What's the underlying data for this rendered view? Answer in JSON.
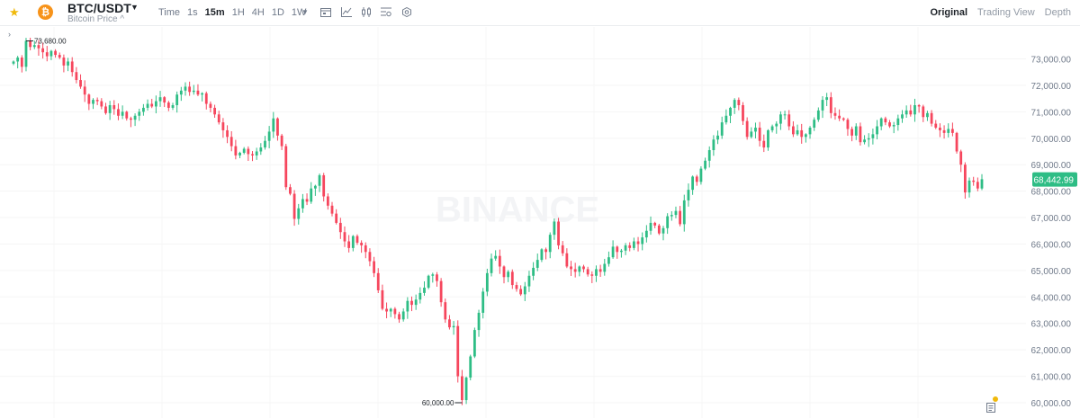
{
  "header": {
    "pair": "BTC/USDT",
    "subtitle": "Bitcoin Price",
    "subtitle_caret": "^",
    "coin_glyph": "₿",
    "intervals": [
      "Time",
      "1s",
      "15m",
      "1H",
      "4H",
      "1D",
      "1W"
    ],
    "active_interval": "15m",
    "view_tabs": [
      "Original",
      "Trading View",
      "Depth"
    ],
    "active_view": "Original",
    "tool_icons": [
      "calendar-icon",
      "indicator-icon",
      "candle-type-icon",
      "settings-list-icon",
      "gear-icon"
    ]
  },
  "colors": {
    "up": "#2ebd85",
    "down": "#f6465d",
    "accent": "#f0b90b",
    "coin": "#f7931a",
    "price_tag": "#2ebd85"
  },
  "watermark": "BINANCE",
  "chart_data": {
    "type": "candlestick",
    "ylim": [
      59850,
      73800
    ],
    "y_ticks": [
      "60,000.00",
      "61,000.00",
      "62,000.00",
      "63,000.00",
      "64,000.00",
      "65,000.00",
      "66,000.00",
      "67,000.00",
      "68,000.00",
      "69,000.00",
      "70,000.00",
      "71,000.00",
      "72,000.00",
      "73,000.00"
    ],
    "y_tick_values": [
      60000,
      61000,
      62000,
      63000,
      64000,
      65000,
      66000,
      67000,
      68000,
      69000,
      70000,
      71000,
      72000,
      73000
    ],
    "last_price": 68442.99,
    "last_price_label": "68,442.99",
    "high_label": "73,680.00",
    "low_label": "60,000.00",
    "closes": [
      72900,
      73050,
      72700,
      73680,
      73450,
      73520,
      73400,
      73250,
      73100,
      73300,
      73150,
      73050,
      72750,
      72900,
      72500,
      72200,
      71950,
      71650,
      71300,
      71450,
      71400,
      71200,
      70950,
      71250,
      71100,
      70850,
      71000,
      70750,
      70700,
      70850,
      71000,
      71150,
      71300,
      71200,
      71400,
      71550,
      71350,
      71150,
      71250,
      71650,
      71800,
      71950,
      71750,
      71800,
      71650,
      71700,
      71300,
      71150,
      70900,
      70600,
      70300,
      70050,
      69700,
      69350,
      69450,
      69600,
      69400,
      69350,
      69500,
      69650,
      69900,
      70250,
      70750,
      70100,
      69700,
      68150,
      67900,
      66950,
      67350,
      67700,
      67600,
      68100,
      68200,
      68600,
      67800,
      67450,
      67150,
      66800,
      66450,
      66100,
      65850,
      66300,
      66050,
      65950,
      65700,
      65350,
      64900,
      64250,
      63550,
      63450,
      63550,
      63350,
      63150,
      63450,
      63850,
      63700,
      63900,
      64150,
      64350,
      64800,
      64850,
      64600,
      63800,
      63150,
      62850,
      62900,
      61000,
      60100,
      60950,
      61750,
      62750,
      63400,
      64200,
      64900,
      65450,
      65550,
      65150,
      64750,
      64950,
      64450,
      64300,
      64100,
      64400,
      64800,
      65100,
      65400,
      65800,
      65700,
      66350,
      66850,
      65950,
      65650,
      65150,
      65050,
      64950,
      65150,
      65050,
      64850,
      64800,
      65050,
      64950,
      65250,
      65500,
      65900,
      65700,
      65750,
      65950,
      65850,
      66100,
      66000,
      66250,
      66500,
      66800,
      66700,
      66400,
      66600,
      67050,
      67100,
      67250,
      66750,
      67650,
      68050,
      68550,
      68350,
      68850,
      69150,
      69550,
      69950,
      70100,
      70600,
      70850,
      71150,
      71450,
      71250,
      70650,
      70050,
      70250,
      70400,
      69900,
      69650,
      70300,
      70450,
      70550,
      70900,
      70900,
      70450,
      70150,
      70300,
      70050,
      70150,
      70400,
      70700,
      71050,
      71450,
      71550,
      70950,
      70850,
      70750,
      70700,
      70350,
      70100,
      70450,
      69850,
      69950,
      70000,
      70150,
      70450,
      70750,
      70600,
      70450,
      70500,
      70750,
      70900,
      71050,
      70900,
      71250,
      71200,
      70800,
      70950,
      70550,
      70400,
      70300,
      70200,
      70350,
      70200,
      69500,
      69000,
      67950,
      68400,
      68350,
      68100,
      68450
    ]
  }
}
